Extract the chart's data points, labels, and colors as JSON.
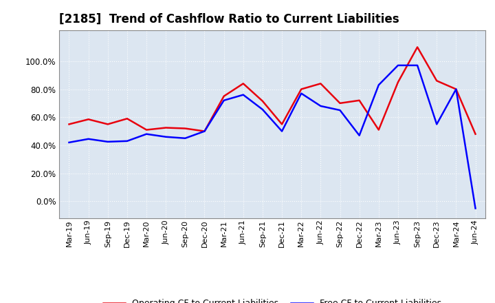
{
  "title": "[2185]  Trend of Cashflow Ratio to Current Liabilities",
  "x_labels": [
    "Mar-19",
    "Jun-19",
    "Sep-19",
    "Dec-19",
    "Mar-20",
    "Jun-20",
    "Sep-20",
    "Dec-20",
    "Mar-21",
    "Jun-21",
    "Sep-21",
    "Dec-21",
    "Mar-22",
    "Jun-22",
    "Sep-22",
    "Dec-22",
    "Mar-23",
    "Jun-23",
    "Sep-23",
    "Dec-23",
    "Mar-24",
    "Jun-24"
  ],
  "operating_cf": [
    55.0,
    58.5,
    55.0,
    59.0,
    51.0,
    52.5,
    52.0,
    50.0,
    75.0,
    84.0,
    71.5,
    55.0,
    80.0,
    84.0,
    70.0,
    72.0,
    51.0,
    85.0,
    110.0,
    86.0,
    80.0,
    48.0
  ],
  "free_cf": [
    42.0,
    44.5,
    42.5,
    43.0,
    48.0,
    46.0,
    45.0,
    50.0,
    72.0,
    76.0,
    65.5,
    50.0,
    77.0,
    68.0,
    65.0,
    47.0,
    83.0,
    97.0,
    97.0,
    55.0,
    80.0,
    -5.0
  ],
  "operating_color": "#e8000d",
  "free_color": "#0000ff",
  "background_color": "#ffffff",
  "plot_bg_color": "#dce6f1",
  "grid_color": "#ffffff",
  "ylim_min": -12.0,
  "ylim_max": 122.0,
  "ytick_values": [
    0.0,
    20.0,
    40.0,
    60.0,
    80.0,
    100.0
  ],
  "legend_op": "Operating CF to Current Liabilities",
  "legend_free": "Free CF to Current Liabilities"
}
